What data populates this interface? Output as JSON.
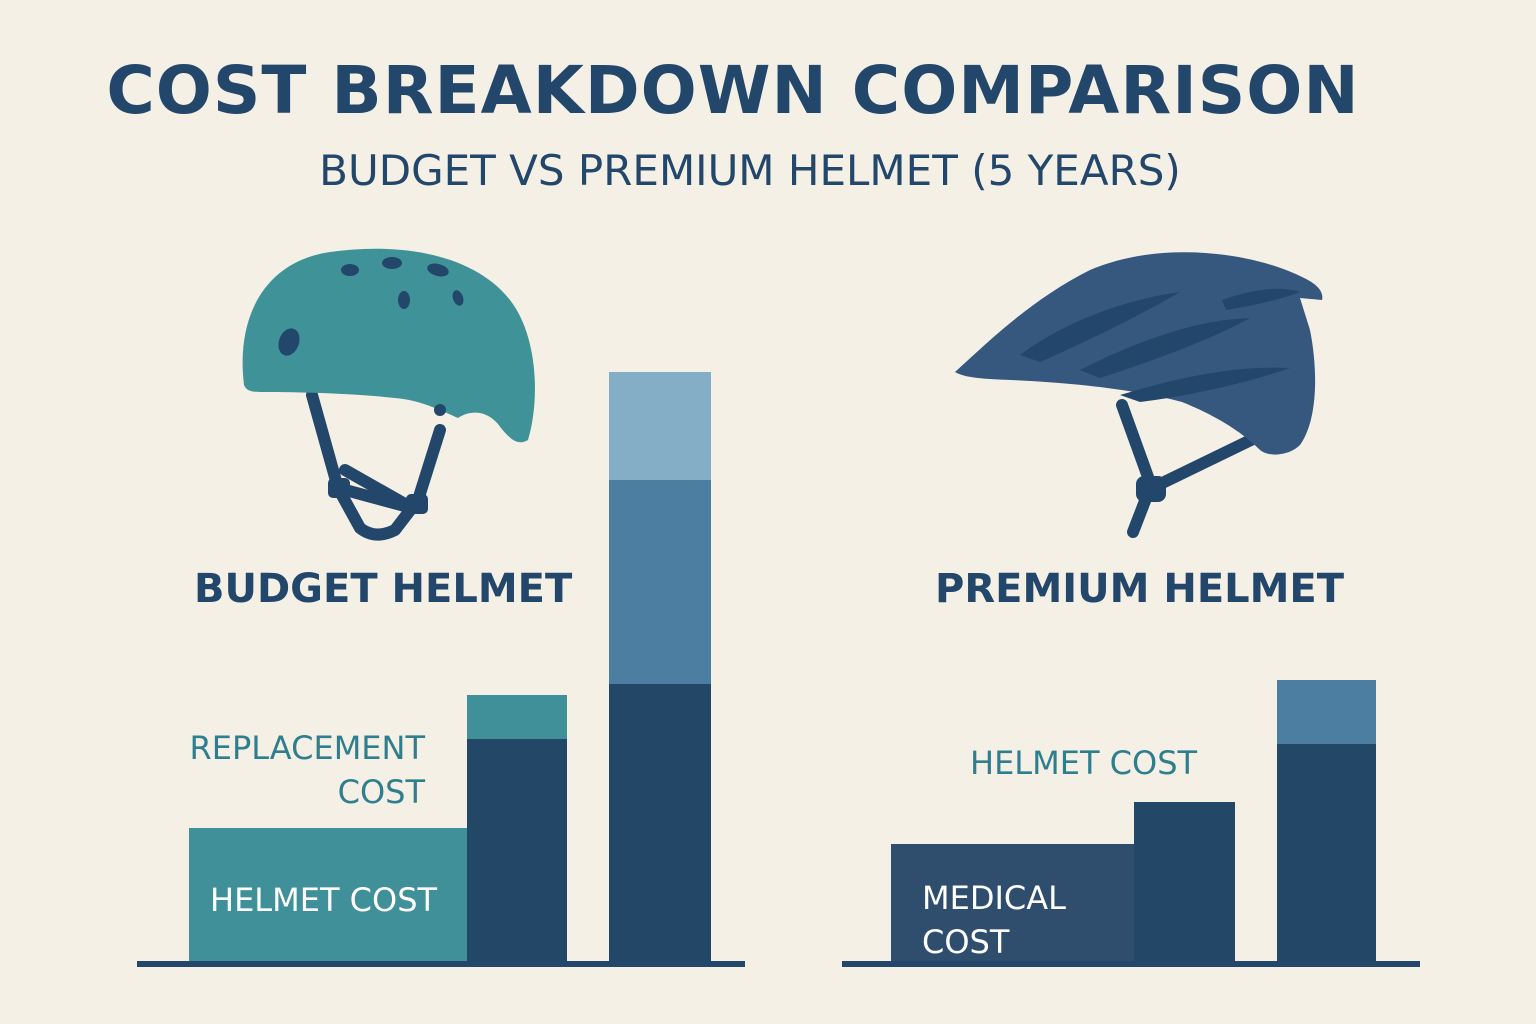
{
  "title": "COST BREAKDOWN COMPARISON",
  "subtitle": "BUDGET VS PREMIUM HELMET (5 YEARS)",
  "panels": {
    "budget": {
      "label": "BUDGET HELMET",
      "icon": "skate-helmet-icon",
      "annotations": {
        "replacement_line1": "REPLACEMENT",
        "replacement_line2": "COST",
        "helmet_cost": "HELMET COST"
      }
    },
    "premium": {
      "label": "PREMIUM HELMET",
      "icon": "bike-helmet-icon",
      "annotations": {
        "helmet_cost": "HELMET COST",
        "medical_line1": "MEDICAL",
        "medical_line2": "COST"
      }
    }
  },
  "colors": {
    "background": "#f5f0e6",
    "text": "#23466b",
    "teal": "#3f9098",
    "dark_navy": "#234867",
    "mid_blue": "#4c7ea1",
    "light_blue": "#83aec6",
    "slate_navy": "#2f4e6e",
    "helmet_budget": "#3f9398",
    "helmet_premium": "#36587f"
  },
  "chart_data": [
    {
      "type": "bar",
      "stacked": true,
      "ylim": [
        0,
        600
      ],
      "bars": [
        {
          "stack": [
            {
              "value": 133,
              "color": "#3f9098"
            }
          ]
        },
        {
          "stack": [
            {
              "value": 222,
              "color": "#234867"
            },
            {
              "value": 44,
              "color": "#3f9098"
            }
          ]
        },
        {
          "stack": [
            {
              "value": 277,
              "color": "#234867"
            },
            {
              "value": 204,
              "color": "#4c7ea1"
            },
            {
              "value": 108,
              "color": "#83aec6"
            }
          ]
        }
      ]
    },
    {
      "type": "bar",
      "stacked": true,
      "ylim": [
        0,
        600
      ],
      "bars": [
        {
          "stack": [
            {
              "value": 117,
              "color": "#2f4e6e"
            }
          ]
        },
        {
          "stack": [
            {
              "value": 159,
              "color": "#234867"
            }
          ]
        },
        {
          "stack": [
            {
              "value": 217,
              "color": "#234867"
            },
            {
              "value": 64,
              "color": "#4c7ea1"
            }
          ]
        }
      ]
    }
  ]
}
